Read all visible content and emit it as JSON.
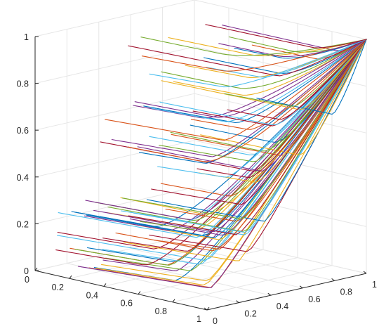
{
  "chart_data": {
    "type": "line",
    "projection": "3d",
    "title": "",
    "xlabel": "",
    "ylabel": "",
    "zlabel": "",
    "xlim": [
      0,
      1
    ],
    "ylim": [
      0,
      1
    ],
    "zlim": [
      0,
      1
    ],
    "x_ticks": [
      "0",
      "0.2",
      "0.4",
      "0.6",
      "0.8",
      "1"
    ],
    "y_ticks": [
      "0",
      "0.2",
      "0.4",
      "0.6",
      "0.8",
      "1"
    ],
    "z_ticks": [
      "0",
      "0.2",
      "0.4",
      "0.6",
      "0.8",
      "1"
    ],
    "grid": true,
    "legend": "none",
    "colors": [
      "#0072BD",
      "#D95319",
      "#EDB120",
      "#7E2F8E",
      "#77AC30",
      "#4DBEEE",
      "#A2142F"
    ],
    "series_description": "Each series is a curve in the y = x plane's neighbourhood: it starts at a point (x0, y0, z0) on the left of the cube, stays at height z0 while running toward the front face, then bends and converges to (1, 1, 1).",
    "start_heights": [
      0.1,
      0.2,
      0.3,
      0.5,
      0.7,
      0.9
    ],
    "start_y": [
      0.1,
      0.3,
      0.45,
      0.6,
      0.75,
      0.9
    ],
    "end_point": [
      1,
      1,
      1
    ]
  }
}
